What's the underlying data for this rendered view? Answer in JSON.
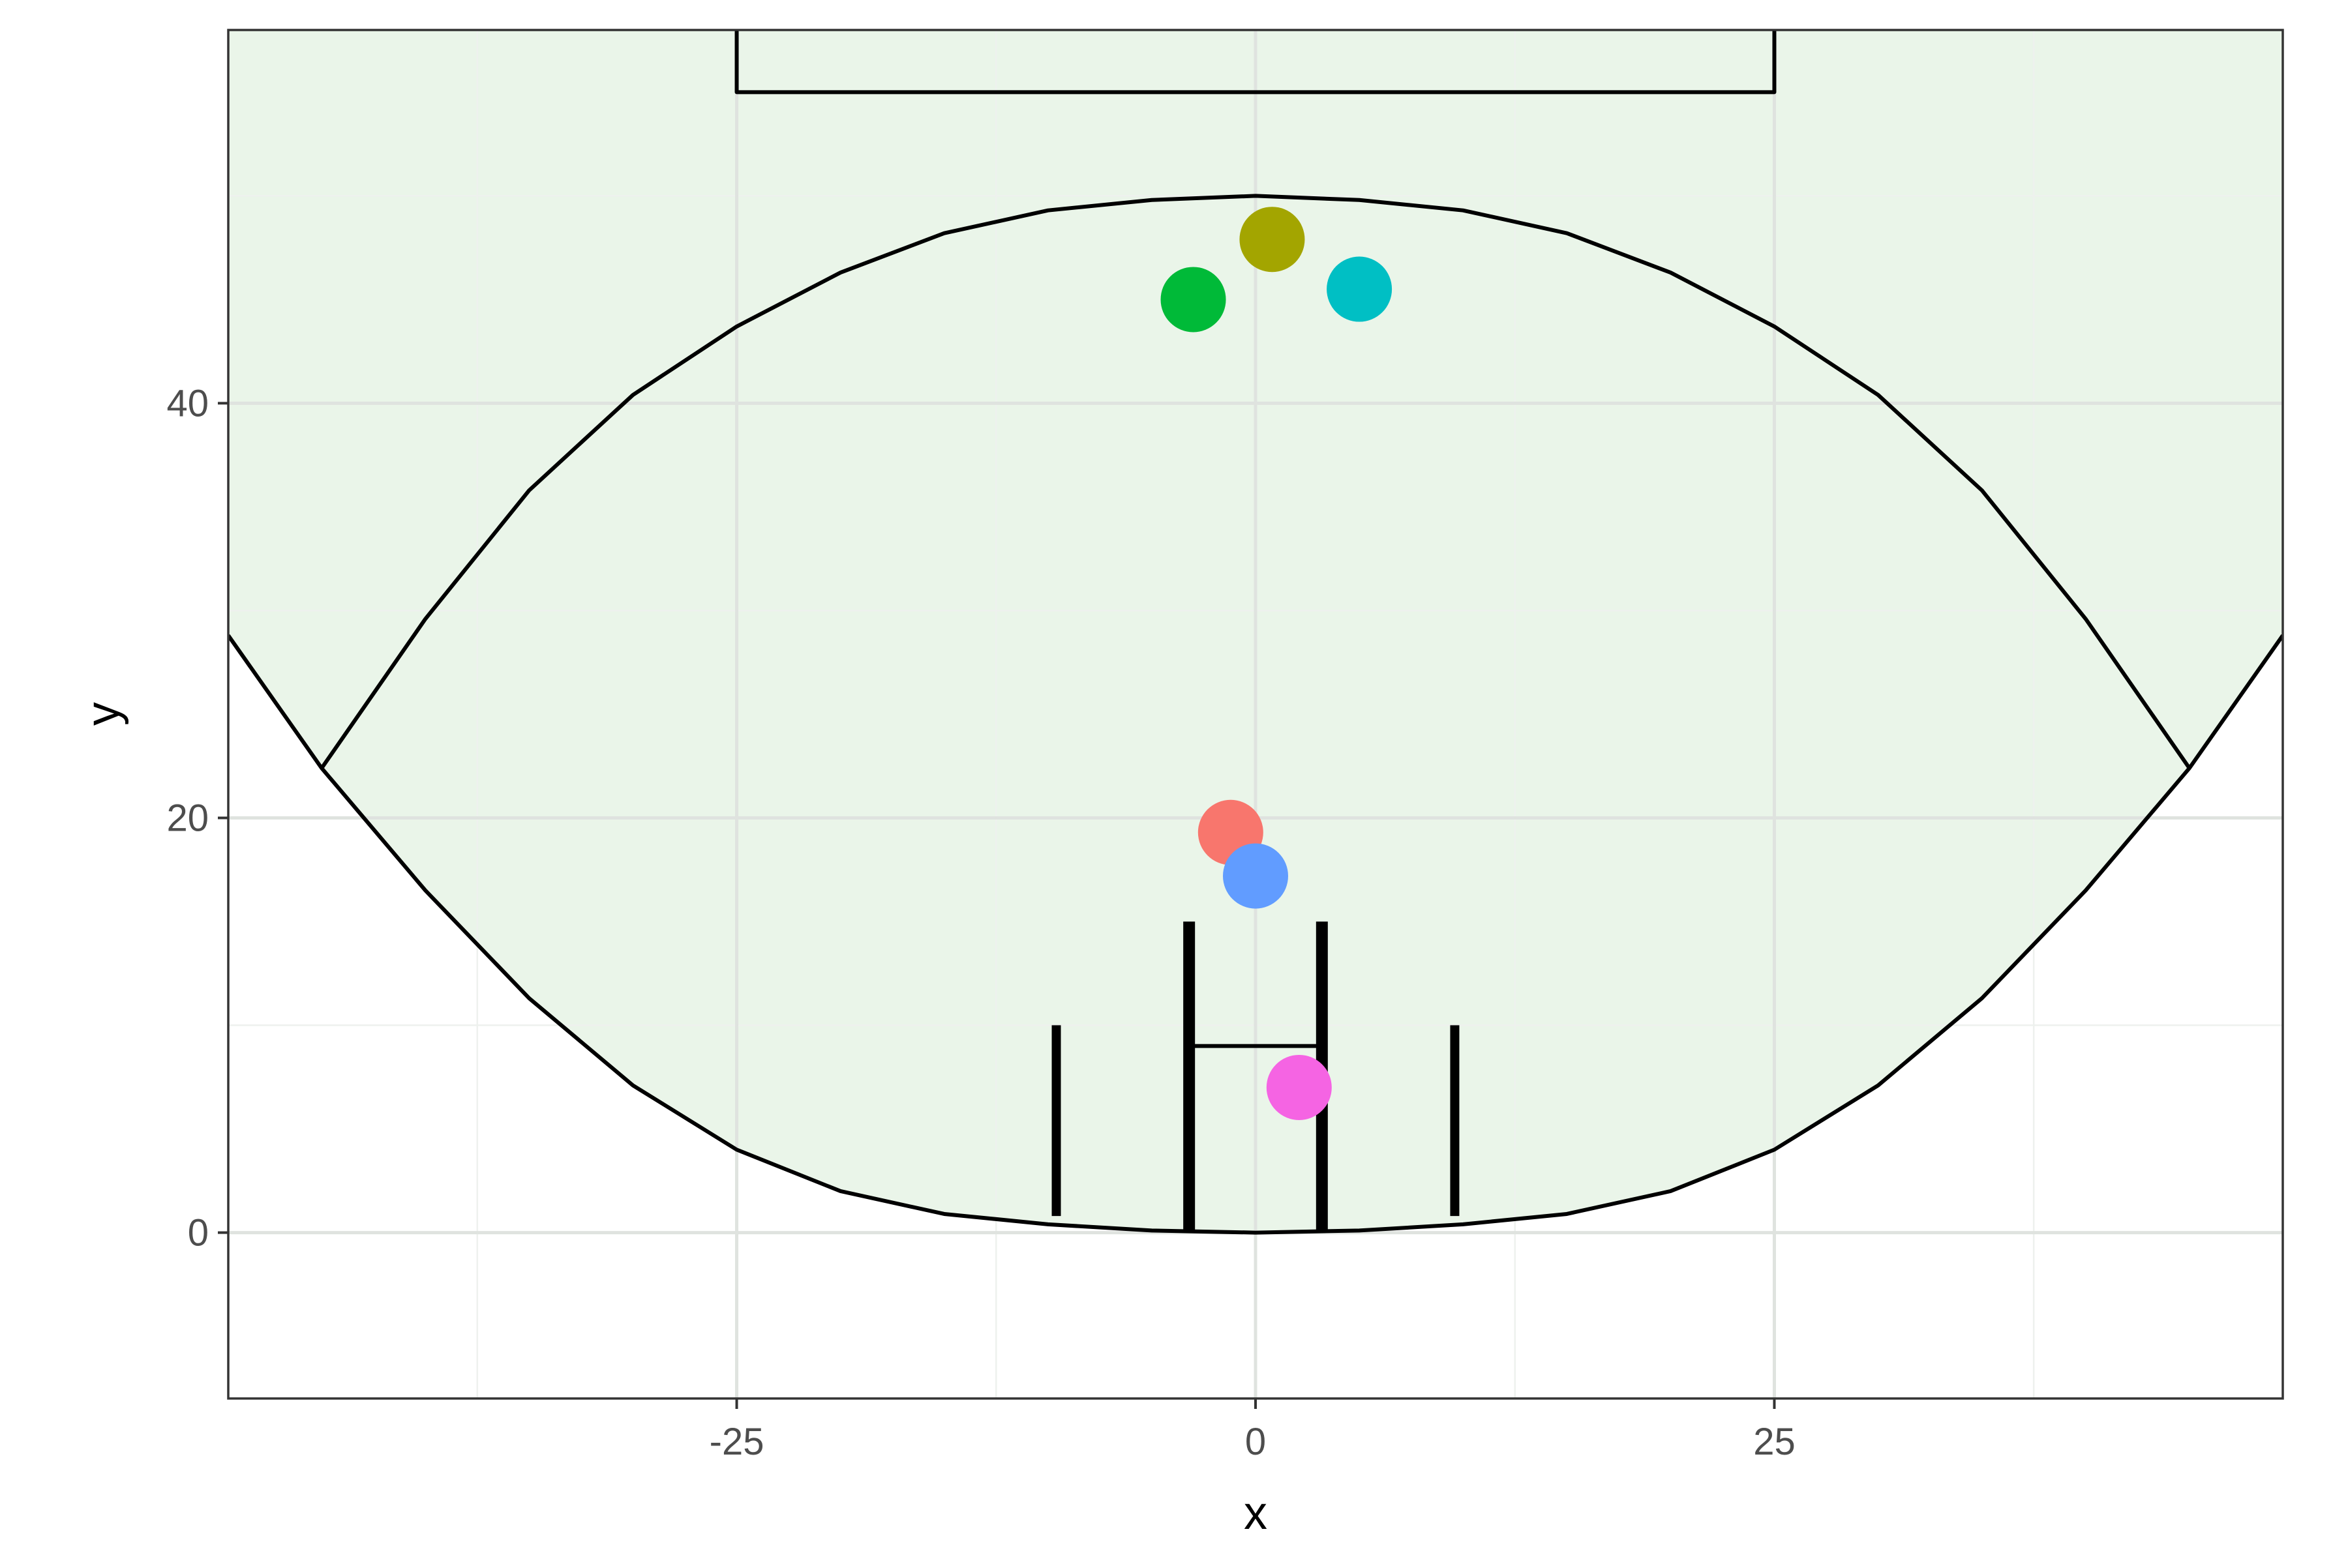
{
  "chart_data": {
    "type": "scatter",
    "title": "",
    "xlabel": "x",
    "ylabel": "y",
    "xlim": [
      -49.5,
      49.5
    ],
    "ylim": [
      -8,
      58
    ],
    "x_ticks": [
      -25,
      0,
      25
    ],
    "x_tick_labels": [
      "-25",
      "0",
      "25"
    ],
    "y_ticks": [
      0,
      20,
      40
    ],
    "y_tick_labels": [
      "0",
      "20",
      "40"
    ],
    "x_minor_grid": [
      -37.5,
      -12.5,
      12.5,
      37.5
    ],
    "y_minor_grid": [
      10,
      30,
      50
    ],
    "grid": true,
    "legend": "none",
    "colors": {
      "field_fill": "#eaf5e9",
      "grid_major": "#dfe3df",
      "grid_minor": "#eef1ee",
      "field_lines": "#000000",
      "panel_border": "#333333"
    },
    "field_boundary": {
      "x": [
        -49.5,
        -45,
        -40,
        -35,
        -30,
        -25,
        -20,
        -15,
        -10,
        -5,
        0,
        5,
        10,
        15,
        20,
        25,
        30,
        35,
        40,
        45,
        49.5
      ],
      "y": [
        28.8,
        22.4,
        16.5,
        11.3,
        7.1,
        4.0,
        2.0,
        0.9,
        0.4,
        0.1,
        0.0,
        0.1,
        0.4,
        0.9,
        2.0,
        4.0,
        7.1,
        11.3,
        16.5,
        22.4,
        28.8
      ]
    },
    "arc_50m": {
      "x": [
        -45,
        -40,
        -35,
        -30,
        -25,
        -20,
        -15,
        -10,
        -5,
        0,
        5,
        10,
        15,
        20,
        25,
        30,
        35,
        40,
        45
      ],
      "y": [
        22.4,
        29.6,
        35.8,
        40.4,
        43.7,
        46.3,
        48.2,
        49.3,
        49.8,
        50.0,
        49.8,
        49.3,
        48.2,
        46.3,
        43.7,
        40.4,
        35.8,
        29.6,
        22.4
      ]
    },
    "centre_square": {
      "x_min": -25,
      "x_max": 25,
      "y_min": 55,
      "y_max": 58
    },
    "goal_square": {
      "x_min": -3.2,
      "x_max": 3.2,
      "y_min": 0,
      "y_max": 9
    },
    "goal_posts": [
      {
        "x": -3.2,
        "y_top": 15
      },
      {
        "x": 3.2,
        "y_top": 15
      }
    ],
    "behind_posts": [
      {
        "x": -9.6,
        "y_top": 10
      },
      {
        "x": 9.6,
        "y_top": 10
      }
    ],
    "points": [
      {
        "x": 0.8,
        "y": 47.9,
        "color": "#a3a500"
      },
      {
        "x": -3.0,
        "y": 45.0,
        "color": "#00ba38"
      },
      {
        "x": 5.0,
        "y": 45.5,
        "color": "#00bfc4"
      },
      {
        "x": -1.2,
        "y": 19.3,
        "color": "#f8766d"
      },
      {
        "x": 0.0,
        "y": 17.2,
        "color": "#619cff"
      },
      {
        "x": 2.1,
        "y": 7.0,
        "color": "#f564e3"
      }
    ]
  }
}
